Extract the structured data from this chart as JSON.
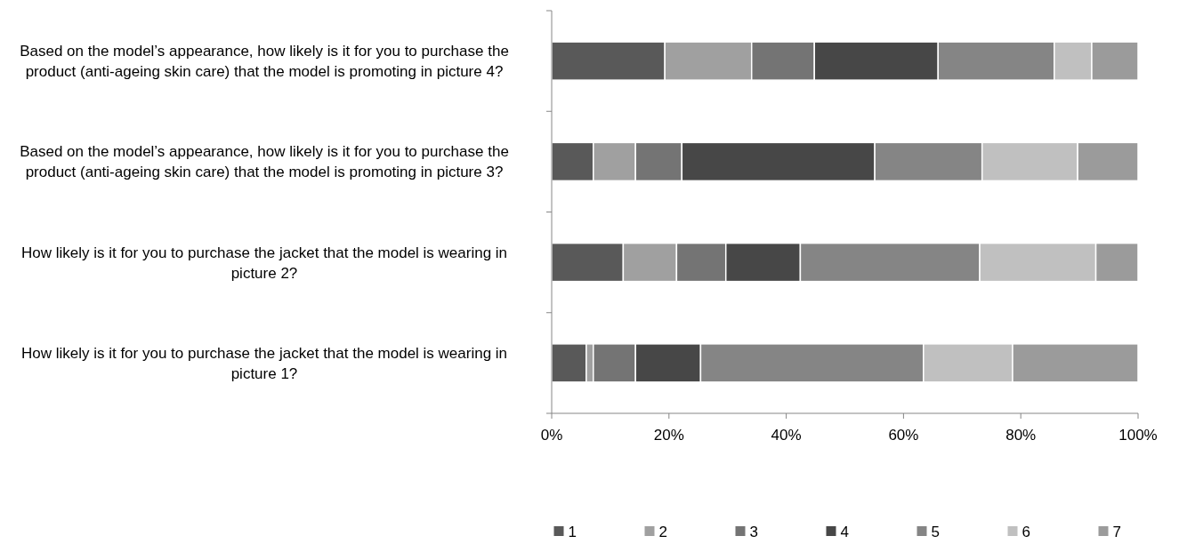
{
  "chart_data": {
    "type": "bar",
    "orientation": "horizontal",
    "stacked": true,
    "categories": [
      "Based on the model’s appearance, how likely is it for you to purchase the product (anti-ageing skin care) that the model is promoting in picture 4?",
      "Based on the model’s appearance, how likely is it for you to purchase the product (anti-ageing skin care) that the model is promoting in picture 3?",
      "How likely is it for you to purchase the jacket that the model is wearing in picture 2?",
      "How likely is it for you to purchase the jacket that the model is wearing in picture 1?"
    ],
    "series": [
      {
        "name": "1",
        "color": "#595959",
        "values": [
          19.3,
          7.1,
          12.2,
          5.9
        ]
      },
      {
        "name": "2",
        "color": "#a0a0a0",
        "values": [
          14.8,
          7.2,
          9.1,
          1.2
        ]
      },
      {
        "name": "3",
        "color": "#747474",
        "values": [
          10.7,
          7.9,
          8.4,
          7.2
        ]
      },
      {
        "name": "4",
        "color": "#474747",
        "values": [
          21.1,
          32.9,
          12.7,
          11.1
        ]
      },
      {
        "name": "5",
        "color": "#858585",
        "values": [
          19.8,
          18.3,
          30.6,
          38.0
        ]
      },
      {
        "name": "6",
        "color": "#c0c0c0",
        "values": [
          6.4,
          16.3,
          19.8,
          15.2
        ]
      },
      {
        "name": "7",
        "color": "#9b9b9b",
        "values": [
          7.9,
          10.3,
          7.2,
          21.4
        ]
      }
    ],
    "xlim": [
      0,
      100
    ],
    "xticks": [
      {
        "value": 0,
        "label": "0%"
      },
      {
        "value": 20,
        "label": "20%"
      },
      {
        "value": 40,
        "label": "40%"
      },
      {
        "value": 60,
        "label": "60%"
      },
      {
        "value": 80,
        "label": "80%"
      },
      {
        "value": 100,
        "label": "100%"
      }
    ],
    "grid": false,
    "legend": "bottom"
  }
}
